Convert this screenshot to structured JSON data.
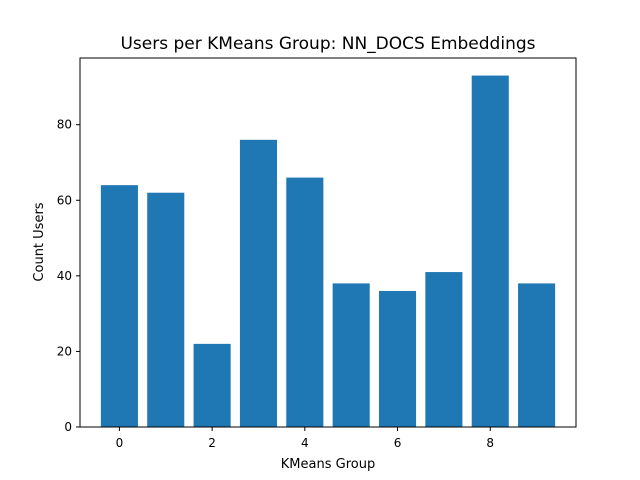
{
  "chart_data": {
    "type": "bar",
    "title": "Users per KMeans Group: NN_DOCS Embeddings",
    "xlabel": "KMeans Group",
    "ylabel": "Count Users",
    "categories": [
      0,
      1,
      2,
      3,
      4,
      5,
      6,
      7,
      8,
      9
    ],
    "values": [
      64,
      62,
      22,
      76,
      66,
      38,
      36,
      41,
      93,
      38
    ],
    "xlim": [
      -0.85,
      9.85
    ],
    "ylim": [
      0,
      97.65
    ],
    "x_ticks": [
      0,
      2,
      4,
      6,
      8
    ],
    "y_ticks": [
      0,
      20,
      40,
      60,
      80
    ],
    "bar_color": "#1f77b4",
    "grid": false,
    "legend": "none"
  }
}
